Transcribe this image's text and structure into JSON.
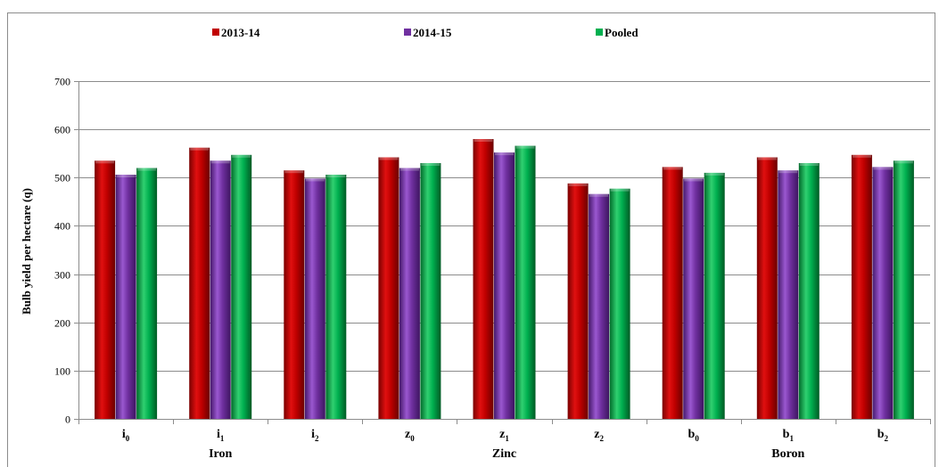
{
  "chart_data": {
    "type": "bar",
    "title": "",
    "xlabel": "",
    "ylabel": "Bulb yield per hectare (q)",
    "ylim": [
      0,
      700
    ],
    "yticks": [
      0,
      100,
      200,
      300,
      400,
      500,
      600,
      700
    ],
    "grid": true,
    "legend_position": "top",
    "categories": [
      {
        "base": "i",
        "sub": "0"
      },
      {
        "base": "i",
        "sub": "1"
      },
      {
        "base": "i",
        "sub": "2"
      },
      {
        "base": "z",
        "sub": "0"
      },
      {
        "base": "z",
        "sub": "1"
      },
      {
        "base": "z",
        "sub": "2"
      },
      {
        "base": "b",
        "sub": "0"
      },
      {
        "base": "b",
        "sub": "1"
      },
      {
        "base": "b",
        "sub": "2"
      }
    ],
    "groups": [
      {
        "label": "Iron",
        "center_category": 1
      },
      {
        "label": "Zinc",
        "center_category": 4
      },
      {
        "label": "Boron",
        "center_category": 7
      }
    ],
    "series": [
      {
        "name": "2013-14",
        "color": "#c00000",
        "values": [
          535,
          562,
          515,
          542,
          580,
          488,
          522,
          542,
          547
        ]
      },
      {
        "name": "2014-15",
        "color": "#7030a0",
        "values": [
          506,
          535,
          498,
          520,
          552,
          466,
          498,
          515,
          522
        ]
      },
      {
        "name": "Pooled",
        "color": "#00b050",
        "values": [
          520,
          547,
          506,
          530,
          566,
          477,
          510,
          530,
          535
        ]
      }
    ]
  }
}
